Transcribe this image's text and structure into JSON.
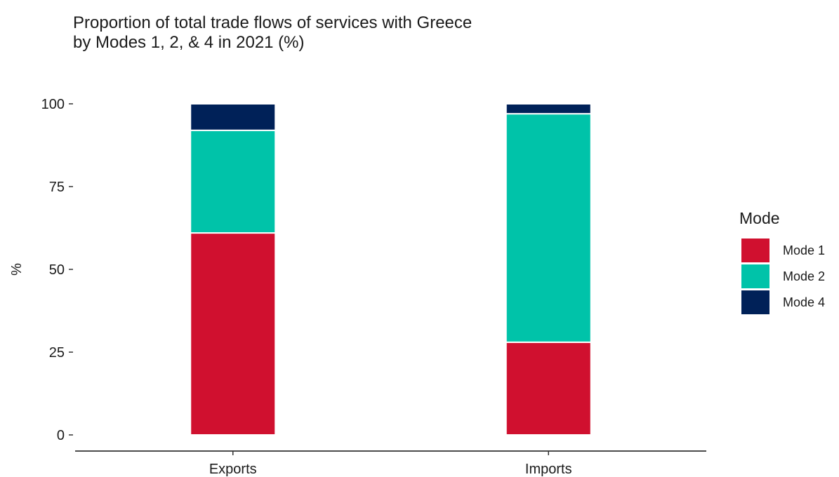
{
  "chart_data": {
    "type": "bar",
    "stacked": true,
    "title": [
      "Proportion of total trade flows of services with Greece",
      "by Modes 1, 2, & 4 in 2021 (%)"
    ],
    "xlabel": "",
    "ylabel": "%",
    "ylim": [
      0,
      100
    ],
    "yticks": [
      0,
      25,
      50,
      75,
      100
    ],
    "ytick_labels": [
      "0",
      "25",
      "50",
      "75",
      "100"
    ],
    "categories": [
      "Exports",
      "Imports"
    ],
    "series": [
      {
        "name": "Mode 1",
        "color": "#d0102f",
        "values": [
          61,
          28
        ]
      },
      {
        "name": "Mode 2",
        "color": "#00c3a9",
        "values": [
          31,
          69
        ]
      },
      {
        "name": "Mode 4",
        "color": "#002158",
        "values": [
          8,
          3
        ]
      }
    ],
    "legend": {
      "title": "Mode",
      "position": "right"
    },
    "grid": false
  }
}
